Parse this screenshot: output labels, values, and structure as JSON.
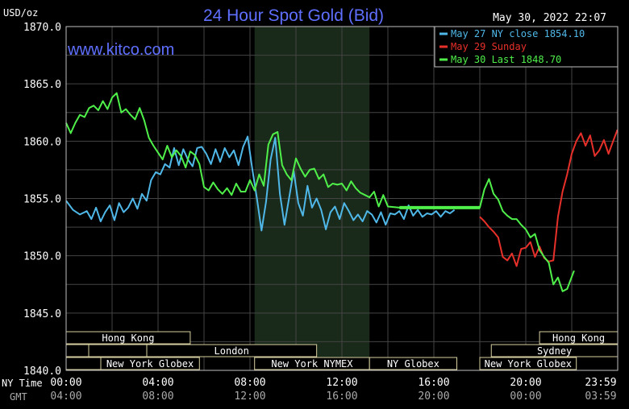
{
  "chart_data": {
    "type": "line",
    "title": "24 Hour Spot Gold (Bid)",
    "watermark": "www.kitco.com",
    "unit_label": "USD/oz",
    "timestamp": "May 30, 2022 22:07",
    "ylim": [
      1840,
      1870
    ],
    "y_ticks": [
      "1870.0",
      "1865.0",
      "1860.0",
      "1855.0",
      "1850.0",
      "1845.0",
      "1840.0"
    ],
    "ny_time_label": "NY Time",
    "gmt_label": "GMT",
    "ny_ticks": [
      "00:00",
      "04:00",
      "08:00",
      "12:00",
      "16:00",
      "20:00",
      "23:59"
    ],
    "gmt_ticks": [
      "04:00",
      "08:00",
      "12:00",
      "16:00",
      "20:00",
      "00:00",
      "03:59"
    ],
    "legend": [
      {
        "label": "May 27 NY close 1854.10",
        "color": "#4fb8e8"
      },
      {
        "label": "May 29 Sunday",
        "color": "#e8302a"
      },
      {
        "label": "May 30 Last 1848.70",
        "color": "#4ff04a"
      }
    ],
    "sessions": [
      {
        "label": "Hong Kong",
        "row": 0,
        "start": 0,
        "end": 5.4
      },
      {
        "label": "Hong Kong",
        "row": 0,
        "start": 20.6,
        "end": 24
      },
      {
        "label": "London",
        "row": 1,
        "start": 3.5,
        "end": 10.9
      },
      {
        "label": "Sydney",
        "row": 1,
        "start": 18.5,
        "end": 24
      },
      {
        "label": "New York Globex",
        "row": 2,
        "start": 1.5,
        "end": 5.8
      },
      {
        "label": "New York NYMEX",
        "row": 2,
        "start": 8.2,
        "end": 13.2
      },
      {
        "label": "NY Globex",
        "row": 2,
        "start": 13.2,
        "end": 17.0
      },
      {
        "label": "New York Globex",
        "row": 2,
        "start": 18.0,
        "end": 22.2
      }
    ],
    "highlight_range_hours": [
      8.2,
      13.2
    ],
    "series": [
      {
        "name": "May 27 NY close 1854.10",
        "color": "#4fb8e8",
        "x": [
          0,
          0.3,
          0.6,
          0.9,
          1.1,
          1.3,
          1.5,
          1.7,
          1.9,
          2.1,
          2.3,
          2.5,
          2.7,
          2.9,
          3.1,
          3.3,
          3.5,
          3.7,
          3.9,
          4.1,
          4.3,
          4.5,
          4.7,
          4.9,
          5.1,
          5.3,
          5.5,
          5.7,
          5.9,
          6.1,
          6.3,
          6.5,
          6.7,
          6.9,
          7.1,
          7.3,
          7.5,
          7.7,
          7.9,
          8.1,
          8.3,
          8.5,
          8.7,
          8.9,
          9.1,
          9.3,
          9.5,
          9.7,
          9.9,
          10.1,
          10.3,
          10.5,
          10.7,
          10.9,
          11.1,
          11.3,
          11.5,
          11.7,
          11.9,
          12.1,
          12.3,
          12.5,
          12.7,
          12.9,
          13.1,
          13.3,
          13.5,
          13.7,
          13.9,
          14.1,
          14.3,
          14.5,
          14.7,
          14.9,
          15.1,
          15.3,
          15.5,
          15.7,
          15.9,
          16.1,
          16.3,
          16.5,
          16.7,
          16.9
        ],
        "y": [
          1854.8,
          1854.0,
          1853.6,
          1853.9,
          1853.2,
          1854.2,
          1853.0,
          1853.8,
          1854.4,
          1853.1,
          1854.6,
          1853.8,
          1854.2,
          1855.0,
          1854.1,
          1855.4,
          1854.8,
          1856.6,
          1857.3,
          1857.1,
          1858.0,
          1857.7,
          1859.4,
          1857.9,
          1859.3,
          1858.4,
          1857.8,
          1859.4,
          1859.5,
          1858.9,
          1858.0,
          1859.3,
          1858.2,
          1859.4,
          1858.6,
          1859.2,
          1857.9,
          1859.5,
          1860.4,
          1857.6,
          1855.0,
          1852.2,
          1854.7,
          1858.4,
          1860.3,
          1855.4,
          1852.7,
          1855.0,
          1857.4,
          1854.6,
          1853.5,
          1856.1,
          1854.2,
          1855.0,
          1854.0,
          1852.3,
          1853.8,
          1854.3,
          1853.2,
          1854.6,
          1853.9,
          1853.1,
          1853.6,
          1853.0,
          1853.9,
          1853.6,
          1852.9,
          1853.8,
          1852.7,
          1853.7,
          1853.6,
          1853.9,
          1853.2,
          1854.4,
          1853.5,
          1854.0,
          1853.4,
          1853.7,
          1853.6,
          1853.9,
          1853.4,
          1853.9,
          1853.7,
          1854.0
        ]
      },
      {
        "name": "May 29 Sunday",
        "color": "#e8302a",
        "x": [
          18,
          18.2,
          18.4,
          18.6,
          18.8,
          19,
          19.2,
          19.4,
          19.6,
          19.8,
          20,
          20.2,
          20.4,
          20.6,
          20.8,
          21,
          21.2,
          21.4,
          21.6,
          21.8,
          22,
          22.2,
          22.4,
          22.6,
          22.8,
          23,
          23.2,
          23.4,
          23.6,
          23.8,
          23.99
        ],
        "y": [
          1853.4,
          1853.0,
          1852.5,
          1852.1,
          1851.6,
          1849.9,
          1849.6,
          1850.2,
          1849.1,
          1850.6,
          1850.7,
          1851.2,
          1849.9,
          1850.8,
          1849.8,
          1849.5,
          1849.6,
          1853.4,
          1855.6,
          1857.1,
          1858.9,
          1860.0,
          1860.7,
          1859.6,
          1860.5,
          1858.7,
          1859.2,
          1860.1,
          1858.9,
          1860.0,
          1861.0
        ]
      },
      {
        "name": "May 30 Last 1848.70",
        "color": "#4ff04a",
        "x": [
          0,
          0.2,
          0.4,
          0.6,
          0.8,
          1,
          1.2,
          1.4,
          1.6,
          1.8,
          2,
          2.2,
          2.4,
          2.6,
          2.8,
          3,
          3.2,
          3.4,
          3.6,
          3.8,
          4,
          4.2,
          4.4,
          4.6,
          4.8,
          5,
          5.2,
          5.4,
          5.6,
          5.8,
          6,
          6.2,
          6.4,
          6.6,
          6.8,
          7,
          7.2,
          7.4,
          7.6,
          7.8,
          8,
          8.2,
          8.4,
          8.6,
          8.8,
          9,
          9.2,
          9.4,
          9.6,
          9.8,
          10,
          10.2,
          10.4,
          10.6,
          10.8,
          11,
          11.2,
          11.4,
          11.6,
          11.8,
          12,
          12.2,
          12.4,
          12.6,
          12.8,
          13,
          13.2,
          13.4,
          13.6,
          13.8,
          14,
          14.5,
          15,
          15.5,
          16,
          16.5,
          17,
          17.5,
          18,
          18.2,
          18.4,
          18.6,
          18.8,
          19,
          19.2,
          19.4,
          19.6,
          19.8,
          20,
          20.2,
          20.4,
          20.6,
          20.8,
          21,
          21.2,
          21.4,
          21.6,
          21.8,
          22.1
        ],
        "y": [
          1861.6,
          1860.7,
          1861.6,
          1862.3,
          1862.1,
          1862.9,
          1863.1,
          1862.7,
          1863.5,
          1862.8,
          1863.8,
          1864.2,
          1862.5,
          1862.8,
          1862.3,
          1861.9,
          1862.9,
          1861.8,
          1860.3,
          1859.6,
          1859.0,
          1858.4,
          1859.6,
          1858.6,
          1859.2,
          1858.7,
          1857.7,
          1859.1,
          1858.8,
          1858.0,
          1856.0,
          1855.7,
          1856.4,
          1855.8,
          1855.4,
          1855.9,
          1855.3,
          1856.3,
          1855.6,
          1855.6,
          1856.6,
          1855.7,
          1857.1,
          1856.1,
          1859.7,
          1860.6,
          1860.8,
          1857.9,
          1857.1,
          1856.6,
          1858.5,
          1857.6,
          1856.9,
          1857.5,
          1857.6,
          1856.7,
          1857.1,
          1856.0,
          1856.3,
          1856.2,
          1856.3,
          1855.7,
          1856.5,
          1855.9,
          1855.5,
          1855.3,
          1855.1,
          1855.6,
          1854.3,
          1855.3,
          1854.3,
          1854.2,
          1854.2,
          1854.2,
          1854.2,
          1854.2,
          1854.2,
          1854.2,
          1854.2,
          1855.8,
          1856.7,
          1855.4,
          1854.9,
          1853.9,
          1853.5,
          1853.2,
          1853.2,
          1852.7,
          1852.3,
          1851.6,
          1851.9,
          1850.5,
          1849.9,
          1849.4,
          1847.5,
          1848.1,
          1846.9,
          1847.1,
          1848.7
        ]
      }
    ]
  }
}
